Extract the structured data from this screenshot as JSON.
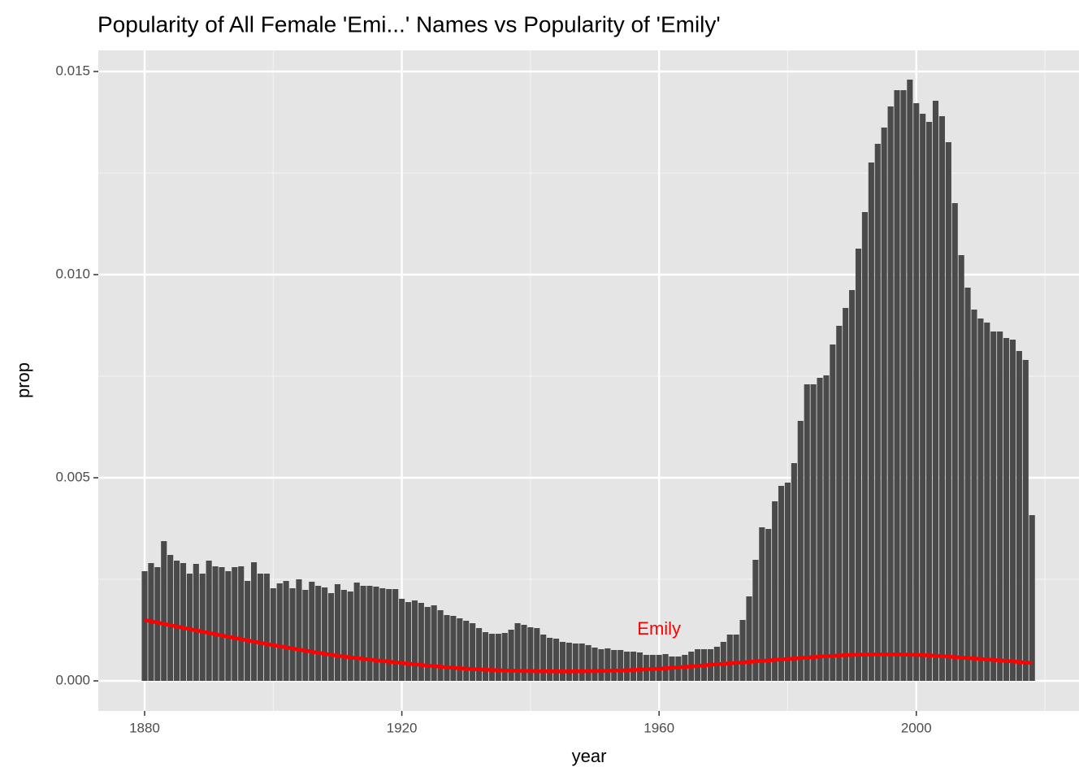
{
  "chart_data": {
    "type": "bar",
    "title": "Popularity of All Female 'Emi...' Names vs Popularity of 'Emily'",
    "x_label": "year",
    "y_label": "prop",
    "x": [
      1880,
      1881,
      1882,
      1883,
      1884,
      1885,
      1886,
      1887,
      1888,
      1889,
      1890,
      1891,
      1892,
      1893,
      1894,
      1895,
      1896,
      1897,
      1898,
      1899,
      1900,
      1901,
      1902,
      1903,
      1904,
      1905,
      1906,
      1907,
      1908,
      1909,
      1910,
      1911,
      1912,
      1913,
      1914,
      1915,
      1916,
      1917,
      1918,
      1919,
      1920,
      1921,
      1922,
      1923,
      1924,
      1925,
      1926,
      1927,
      1928,
      1929,
      1930,
      1931,
      1932,
      1933,
      1934,
      1935,
      1936,
      1937,
      1938,
      1939,
      1940,
      1941,
      1942,
      1943,
      1944,
      1945,
      1946,
      1947,
      1948,
      1949,
      1950,
      1951,
      1952,
      1953,
      1954,
      1955,
      1956,
      1957,
      1958,
      1959,
      1960,
      1961,
      1962,
      1963,
      1964,
      1965,
      1966,
      1967,
      1968,
      1969,
      1970,
      1971,
      1972,
      1973,
      1974,
      1975,
      1976,
      1977,
      1978,
      1979,
      1980,
      1981,
      1982,
      1983,
      1984,
      1985,
      1986,
      1987,
      1988,
      1989,
      1990,
      1991,
      1992,
      1993,
      1994,
      1995,
      1996,
      1997,
      1998,
      1999,
      2000,
      2001,
      2002,
      2003,
      2004,
      2005,
      2006,
      2007,
      2008,
      2009,
      2010,
      2011,
      2012,
      2013,
      2014,
      2015,
      2016,
      2017,
      2018
    ],
    "values": [
      0.0027,
      0.0029,
      0.0028,
      0.00344,
      0.0031,
      0.00296,
      0.0029,
      0.00264,
      0.00288,
      0.00264,
      0.00296,
      0.00282,
      0.0028,
      0.0027,
      0.0028,
      0.00282,
      0.00246,
      0.00292,
      0.00264,
      0.00264,
      0.00228,
      0.0024,
      0.00246,
      0.00228,
      0.0025,
      0.00224,
      0.00244,
      0.00234,
      0.0023,
      0.00216,
      0.00238,
      0.00224,
      0.0022,
      0.00242,
      0.00234,
      0.00234,
      0.00232,
      0.00228,
      0.00226,
      0.00226,
      0.00202,
      0.00194,
      0.00198,
      0.00192,
      0.00182,
      0.00186,
      0.00174,
      0.00162,
      0.0016,
      0.00154,
      0.00148,
      0.00142,
      0.0013,
      0.0012,
      0.00116,
      0.00116,
      0.00118,
      0.00126,
      0.00142,
      0.00138,
      0.00132,
      0.0013,
      0.00114,
      0.00106,
      0.00104,
      0.00096,
      0.00094,
      0.00092,
      0.00092,
      0.00088,
      0.00082,
      0.00078,
      0.0008,
      0.00076,
      0.00076,
      0.00072,
      0.00072,
      0.0007,
      0.00064,
      0.00064,
      0.00064,
      0.00066,
      0.0006,
      0.0006,
      0.00064,
      0.00072,
      0.00078,
      0.00078,
      0.00078,
      0.00084,
      0.00096,
      0.00114,
      0.00114,
      0.0015,
      0.00208,
      0.00298,
      0.00378,
      0.00374,
      0.00442,
      0.0048,
      0.00488,
      0.00536,
      0.0064,
      0.0073,
      0.0073,
      0.00746,
      0.00752,
      0.00828,
      0.00874,
      0.00918,
      0.00962,
      0.01064,
      0.01154,
      0.01276,
      0.01322,
      0.01362,
      0.01414,
      0.01454,
      0.01454,
      0.0148,
      0.01422,
      0.01396,
      0.01376,
      0.01428,
      0.0139,
      0.01326,
      0.01176,
      0.01048,
      0.00968,
      0.00914,
      0.00892,
      0.00882,
      0.0086,
      0.0086,
      0.00844,
      0.0084,
      0.00812,
      0.0079,
      0.00408
    ],
    "color": "#4a4a4a",
    "line": {
      "color": "#ff0000",
      "x": [
        1880,
        1890,
        1900,
        1910,
        1920,
        1930,
        1940,
        1950,
        1960,
        1970,
        1980,
        1990,
        2000,
        2010,
        2018
      ],
      "values": [
        0.0015,
        0.00118,
        0.00088,
        0.00062,
        0.00044,
        0.0003,
        0.00024,
        0.00024,
        0.0003,
        0.00042,
        0.00054,
        0.00064,
        0.00064,
        0.00054,
        0.00044
      ]
    },
    "annotation": {
      "text": "Emily",
      "x": 1960,
      "y": 0.00126,
      "color": "#ff0000"
    },
    "xlim": [
      1872.8,
      2025.3
    ],
    "ylim": [
      -0.00074,
      0.01552
    ],
    "xticks": [
      1880,
      1920,
      1960,
      2000
    ],
    "xminor": [
      1900,
      1940,
      1980,
      2020
    ],
    "yticks": [
      {
        "value": 0,
        "label": "0.000"
      },
      {
        "value": 0.005,
        "label": "0.005"
      },
      {
        "value": 0.01,
        "label": "0.010"
      },
      {
        "value": 0.015,
        "label": "0.015"
      }
    ],
    "yminor": [
      0.0025,
      0.0075,
      0.0125
    ],
    "grid": true
  }
}
